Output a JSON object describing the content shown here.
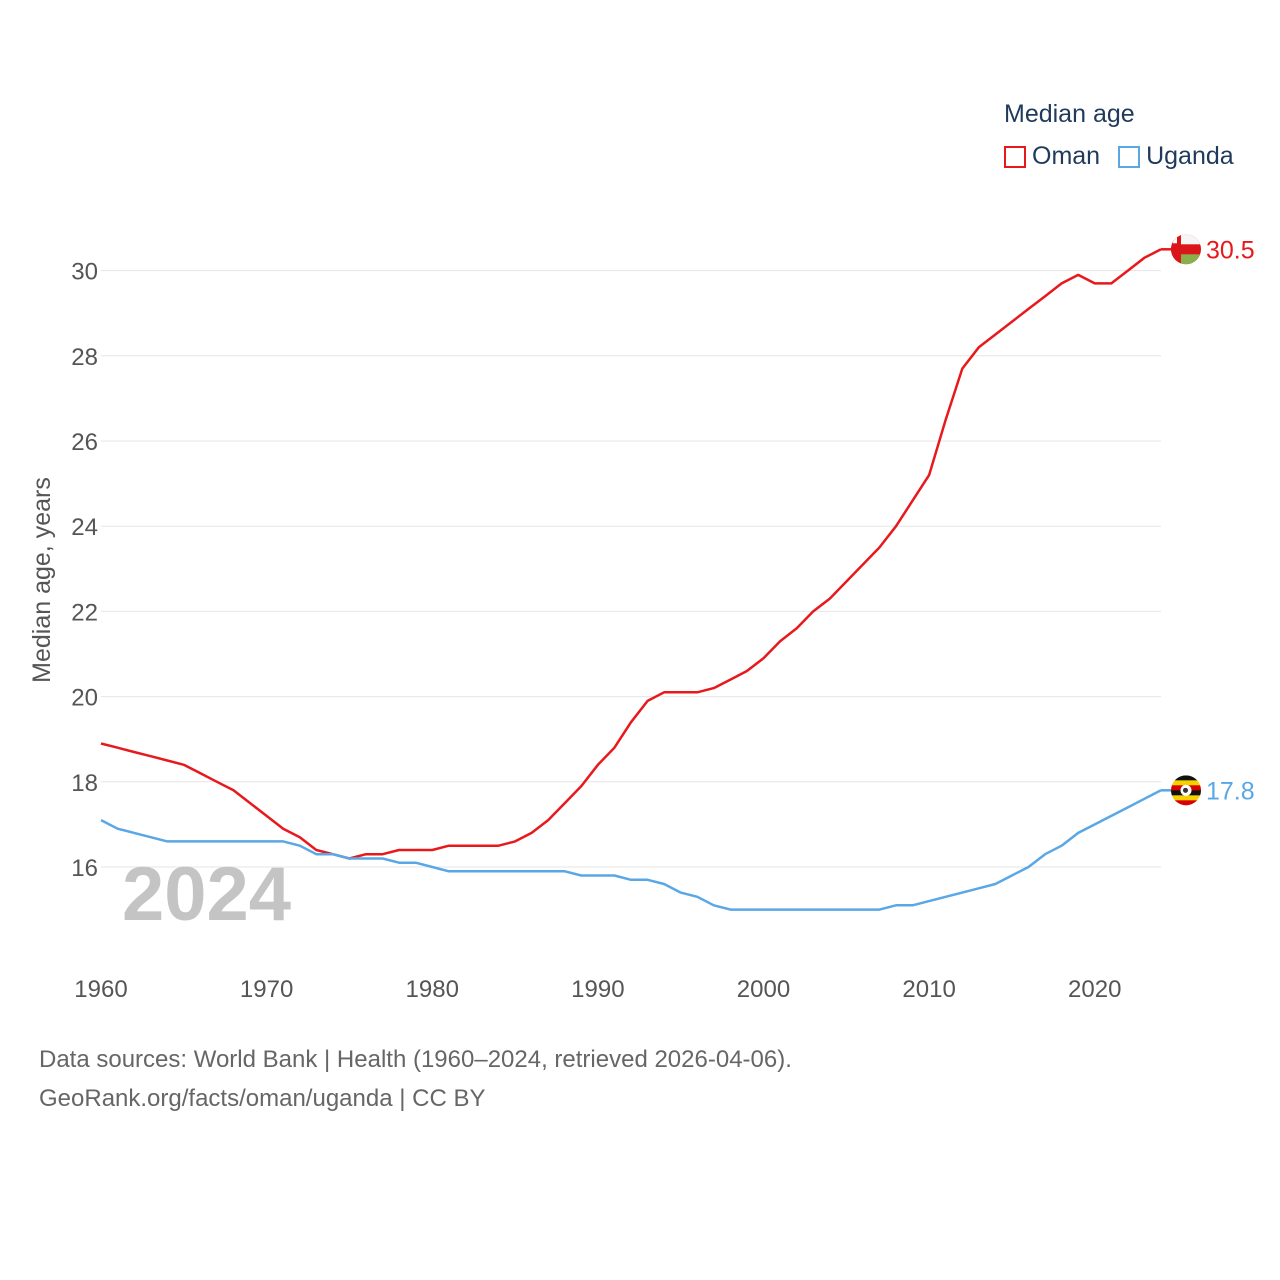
{
  "chart_data": {
    "type": "line",
    "title": "Median age",
    "ylabel": "Median age, years",
    "xlabel": "",
    "xlim": [
      1960,
      2024
    ],
    "ylim": [
      14,
      31
    ],
    "yticks": [
      16,
      18,
      20,
      22,
      24,
      26,
      28,
      30
    ],
    "xticks": [
      1960,
      1970,
      1980,
      1990,
      2000,
      2010,
      2020
    ],
    "grid": true,
    "year_label": "2024",
    "legend_position": "top-right",
    "x": [
      1960,
      1961,
      1962,
      1963,
      1964,
      1965,
      1966,
      1967,
      1968,
      1969,
      1970,
      1971,
      1972,
      1973,
      1974,
      1975,
      1976,
      1977,
      1978,
      1979,
      1980,
      1981,
      1982,
      1983,
      1984,
      1985,
      1986,
      1987,
      1988,
      1989,
      1990,
      1991,
      1992,
      1993,
      1994,
      1995,
      1996,
      1997,
      1998,
      1999,
      2000,
      2001,
      2002,
      2003,
      2004,
      2005,
      2006,
      2007,
      2008,
      2009,
      2010,
      2011,
      2012,
      2013,
      2014,
      2015,
      2016,
      2017,
      2018,
      2019,
      2020,
      2021,
      2022,
      2023,
      2024
    ],
    "series": [
      {
        "name": "Oman",
        "color": "#e8191c",
        "end_label": "30.5",
        "flag": "oman-flag",
        "values": [
          18.9,
          18.8,
          18.7,
          18.6,
          18.5,
          18.4,
          18.2,
          18.0,
          17.8,
          17.5,
          17.2,
          16.9,
          16.7,
          16.4,
          16.3,
          16.2,
          16.3,
          16.3,
          16.4,
          16.4,
          16.4,
          16.5,
          16.5,
          16.5,
          16.5,
          16.6,
          16.8,
          17.1,
          17.5,
          17.9,
          18.4,
          18.8,
          19.4,
          19.9,
          20.1,
          20.1,
          20.1,
          20.2,
          20.4,
          20.6,
          20.9,
          21.3,
          21.6,
          22.0,
          22.3,
          22.7,
          23.1,
          23.5,
          24.0,
          24.6,
          25.2,
          26.5,
          27.7,
          28.2,
          28.5,
          28.8,
          29.1,
          29.4,
          29.7,
          29.9,
          29.7,
          29.7,
          30.0,
          30.3,
          30.5
        ]
      },
      {
        "name": "Uganda",
        "color": "#5aa7e6",
        "end_label": "17.8",
        "flag": "uganda-flag",
        "values": [
          17.1,
          16.9,
          16.8,
          16.7,
          16.6,
          16.6,
          16.6,
          16.6,
          16.6,
          16.6,
          16.6,
          16.6,
          16.5,
          16.3,
          16.3,
          16.2,
          16.2,
          16.2,
          16.1,
          16.1,
          16.0,
          15.9,
          15.9,
          15.9,
          15.9,
          15.9,
          15.9,
          15.9,
          15.9,
          15.8,
          15.8,
          15.8,
          15.7,
          15.7,
          15.6,
          15.4,
          15.3,
          15.1,
          15.0,
          15.0,
          15.0,
          15.0,
          15.0,
          15.0,
          15.0,
          15.0,
          15.0,
          15.0,
          15.1,
          15.1,
          15.2,
          15.3,
          15.4,
          15.5,
          15.6,
          15.8,
          16.0,
          16.3,
          16.5,
          16.8,
          17.0,
          17.2,
          17.4,
          17.6,
          17.8
        ]
      }
    ]
  },
  "footer": {
    "line1": "Data sources: World Bank | Health (1960–2024, retrieved 2026-04-06).",
    "line2": "GeoRank.org/facts/oman/uganda | CC BY"
  }
}
